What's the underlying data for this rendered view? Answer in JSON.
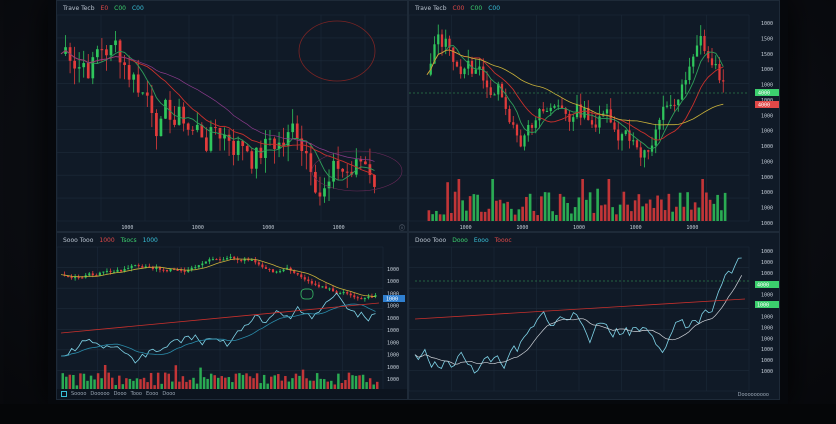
{
  "panels": {
    "top_left": {
      "toolbar": {
        "symbol": "Trave Tecb",
        "tags": [
          {
            "t": "E0",
            "c": "red"
          },
          {
            "t": "C00",
            "c": "green"
          },
          {
            "t": "C00",
            "c": "cyan"
          }
        ]
      },
      "x_ticks": [
        "1000",
        "1000",
        "1000",
        "1000"
      ],
      "corner_icon": "ⓘ"
    },
    "top_right": {
      "toolbar": {
        "symbol": "Trave Tecb",
        "tags": [
          {
            "t": "C00",
            "c": "red"
          },
          {
            "t": "C00",
            "c": "green"
          },
          {
            "t": "C00",
            "c": "cyan"
          }
        ]
      },
      "y_ticks": [
        "1000",
        "1500",
        "1500",
        "1000",
        "1000",
        "1000",
        "1000",
        "1000",
        "1000",
        "1000",
        "1000",
        "1000",
        "1000",
        "1000"
      ],
      "price_badges": [
        {
          "t": "4000",
          "c": "#3ccf6e"
        },
        {
          "t": "4000",
          "c": "#e04848"
        }
      ],
      "x_ticks": [
        "1000",
        "1000",
        "1000",
        "1000",
        "1000"
      ]
    },
    "bottom_left": {
      "toolbar": {
        "symbol": "Sooo Tooo",
        "tags": [
          {
            "t": "1000",
            "c": "red"
          },
          {
            "t": "Tsocs",
            "c": "green"
          },
          {
            "t": "1000",
            "c": "cyan"
          }
        ]
      },
      "y_ticks": [
        "1000",
        "1000",
        "1000",
        "1000",
        "1000",
        "1000",
        "1000",
        "1000",
        "1000",
        "1000"
      ],
      "price_badge": "1000",
      "x_ticks": [
        "1000",
        "1000",
        "1000",
        "1000",
        "1000"
      ],
      "footer": [
        "Soooo",
        "Dooooo",
        "Dooo",
        "Tooo",
        "Eooo",
        "Dooo"
      ]
    },
    "bottom_right": {
      "toolbar": {
        "symbol": "Dooo Tooo",
        "tags": [
          {
            "t": "Dooo",
            "c": "green"
          },
          {
            "t": "Eooo",
            "c": "cyan"
          },
          {
            "t": "Toooc",
            "c": "red"
          }
        ]
      },
      "y_ticks": [
        "1000",
        "1000",
        "1000",
        "1000",
        "1000",
        "1000",
        "1000",
        "1000",
        "1000",
        "1000",
        "1000",
        "1000"
      ],
      "price_badges": [
        {
          "t": "4000",
          "c": "#3ccf6e"
        },
        {
          "t": "1000",
          "c": "#3ccf6e"
        }
      ],
      "footer": "Dooooooooo"
    }
  },
  "colors": {
    "up": "#2fc65c",
    "down": "#e23b3b",
    "grid": "#1c2a3a",
    "ma_red": "#c9302c",
    "ma_green": "#2f9e5a",
    "ma_yellow": "#c9b13a",
    "line_cyan": "#7fd4e8"
  }
}
